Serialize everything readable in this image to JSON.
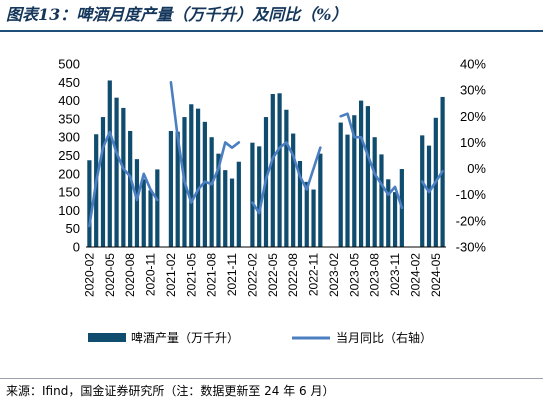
{
  "header": {
    "title": "图表13：啤酒月度产量（万千升）及同比（%）"
  },
  "footer": {
    "source": "来源：Ifind，国金证券研究所（注：数据更新至 24 年 6 月）"
  },
  "colors": {
    "bar": "#0f4c6e",
    "line": "#4b7fc1",
    "title": "#14365a"
  },
  "chart_data": {
    "type": "bar",
    "x": [
      "2020-02",
      "2020-03",
      "2020-04",
      "2020-05",
      "2020-06",
      "2020-07",
      "2020-08",
      "2020-09",
      "2020-10",
      "2020-11",
      "2020-12",
      "2021-01",
      "2021-02",
      "2021-03",
      "2021-04",
      "2021-05",
      "2021-06",
      "2021-07",
      "2021-08",
      "2021-09",
      "2021-10",
      "2021-11",
      "2021-12",
      "2022-01",
      "2022-02",
      "2022-03",
      "2022-04",
      "2022-05",
      "2022-06",
      "2022-07",
      "2022-08",
      "2022-09",
      "2022-10",
      "2022-11",
      "2022-12",
      "2023-01",
      "2023-02",
      "2023-03",
      "2023-04",
      "2023-05",
      "2023-06",
      "2023-07",
      "2023-08",
      "2023-09",
      "2023-10",
      "2023-11",
      "2023-12",
      "2024-01",
      "2024-02",
      "2024-03",
      "2024-04",
      "2024-05",
      "2024-06"
    ],
    "xticks": [
      "2020-02",
      "2020-05",
      "2020-08",
      "2020-11",
      "2021-02",
      "2021-05",
      "2021-08",
      "2021-11",
      "2022-02",
      "2022-05",
      "2022-08",
      "2022-11",
      "2023-02",
      "2023-05",
      "2023-08",
      "2023-11",
      "2024-02",
      "2024-05"
    ],
    "series": [
      {
        "name": "啤酒产量（万千升）",
        "type": "bar",
        "axis": "left",
        "values": [
          237,
          308,
          355,
          455,
          408,
          380,
          317,
          240,
          185,
          155,
          212,
          null,
          317,
          315,
          355,
          390,
          378,
          342,
          300,
          255,
          210,
          187,
          233,
          null,
          285,
          275,
          355,
          418,
          420,
          375,
          310,
          235,
          178,
          157,
          255,
          null,
          null,
          340,
          307,
          360,
          400,
          385,
          300,
          253,
          185,
          150,
          213,
          null,
          null,
          305,
          277,
          353,
          410
        ]
      },
      {
        "name": "当月同比（右轴）",
        "type": "line",
        "axis": "right",
        "values": [
          -22,
          -5,
          8,
          14,
          6,
          0,
          -3,
          -12,
          -2,
          -8,
          -12,
          null,
          33,
          12,
          -5,
          -13,
          -8,
          -5,
          -6,
          0,
          10,
          8,
          10,
          null,
          -13,
          -17,
          -4,
          4,
          8,
          10,
          5,
          -3,
          -8,
          0,
          8,
          null,
          null,
          20,
          21,
          12,
          12,
          5,
          -2,
          -6,
          -10,
          -7,
          -15,
          null,
          null,
          -5,
          -9,
          -5,
          -1
        ]
      }
    ],
    "y_left": {
      "min": 0,
      "max": 500,
      "ticks": [
        0,
        50,
        100,
        150,
        200,
        250,
        300,
        350,
        400,
        450,
        500
      ]
    },
    "y_right": {
      "min": -30,
      "max": 40,
      "ticks": [
        "40%",
        "30%",
        "20%",
        "10%",
        "0%",
        "-10%",
        "-20%",
        "-30%"
      ]
    },
    "legend": {
      "position": "bottom",
      "bar_label": "啤酒产量（万千升）",
      "line_label": "当月同比（右轴）"
    }
  }
}
